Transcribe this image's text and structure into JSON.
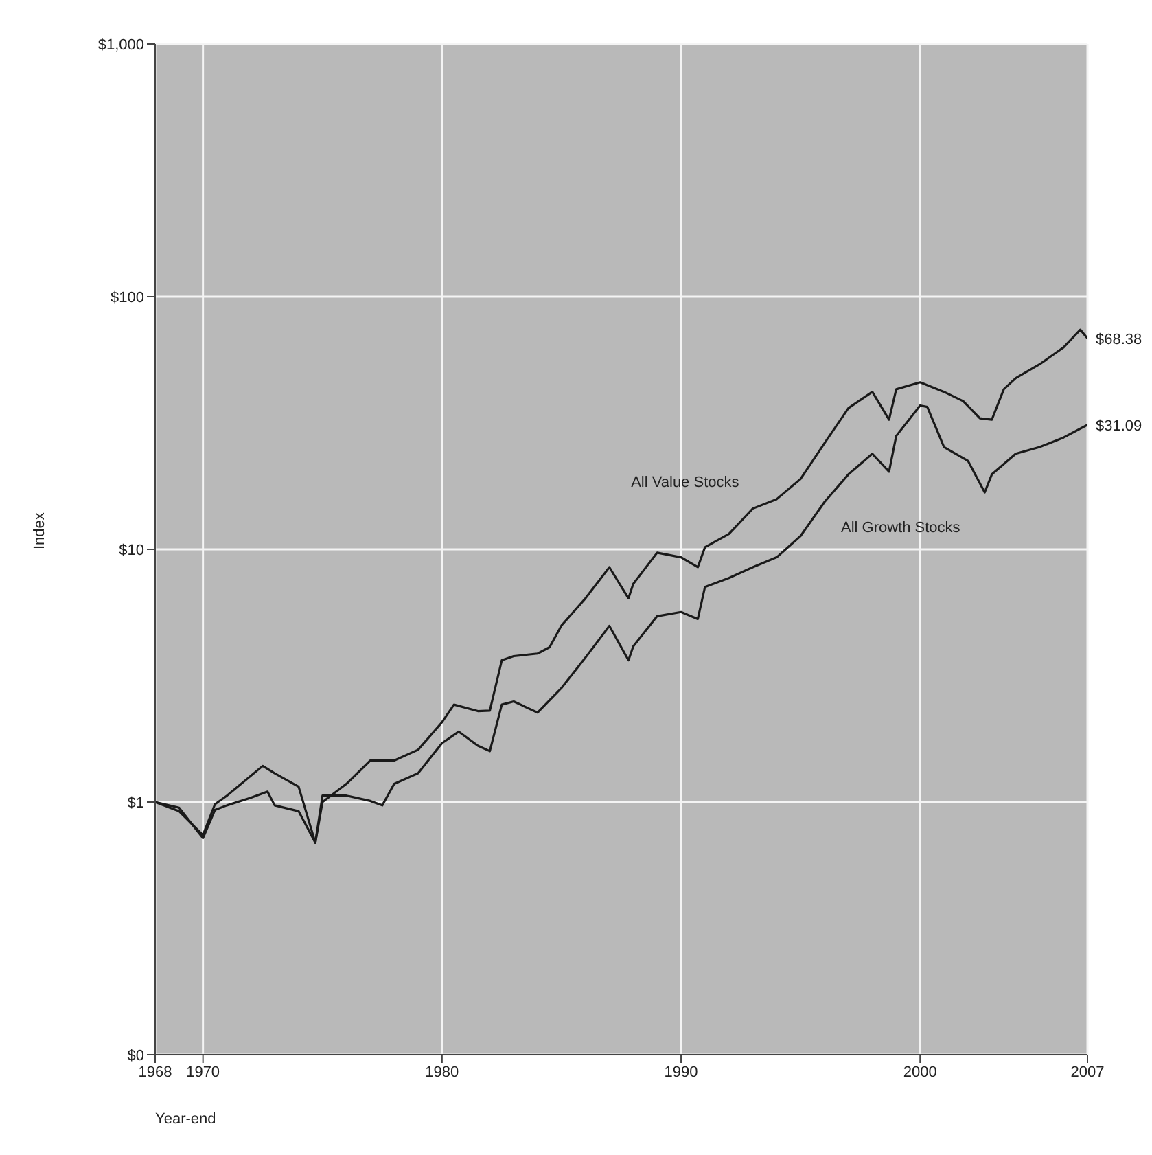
{
  "chart_data": {
    "type": "line",
    "xlabel": "Year-end",
    "ylabel": "Index",
    "log": "y",
    "grid": true,
    "marker": "none",
    "line_style": "solid",
    "xlim": [
      1968,
      2007
    ],
    "xticks": [
      1968,
      1970,
      1980,
      1990,
      2000,
      2007
    ],
    "ylim": [
      0.1,
      1000
    ],
    "yticks": [
      {
        "value": 0.1,
        "label": "$0"
      },
      {
        "value": 1,
        "label": "$1"
      },
      {
        "value": 10,
        "label": "$10"
      },
      {
        "value": 100,
        "label": "$100"
      },
      {
        "value": 1000,
        "label": "$1,000"
      }
    ],
    "series": [
      {
        "name": "All Value Stocks",
        "color": "#1a1a1a",
        "x": [
          1968,
          1969,
          1970,
          1970.5,
          1971,
          1972.5,
          1973,
          1974,
          1974.7,
          1975,
          1976,
          1977,
          1978,
          1979,
          1980,
          1980.5,
          1981.5,
          1982,
          1982.5,
          1983,
          1984,
          1984.5,
          1985,
          1986,
          1987,
          1987.8,
          1988,
          1989,
          1990,
          1990.7,
          1991,
          1992,
          1993,
          1994,
          1995,
          1996,
          1997,
          1998,
          1998.7,
          1999,
          2000,
          2001,
          2001.8,
          2002.5,
          2003,
          2003.5,
          2004,
          2005,
          2006,
          2006.7,
          2007
        ],
        "values": [
          1.0,
          0.92,
          0.74,
          0.98,
          1.06,
          1.39,
          1.3,
          1.15,
          0.69,
          1.0,
          1.18,
          1.46,
          1.46,
          1.61,
          2.07,
          2.43,
          2.29,
          2.3,
          3.64,
          3.78,
          3.87,
          4.1,
          5.0,
          6.4,
          8.5,
          6.4,
          7.3,
          9.7,
          9.3,
          8.5,
          10.2,
          11.5,
          14.5,
          15.8,
          19.0,
          26.3,
          36.2,
          42,
          32.6,
          43,
          45.8,
          42,
          38.6,
          33,
          32.6,
          43,
          47.6,
          54,
          63,
          74,
          68.38
        ]
      },
      {
        "name": "All Growth Stocks",
        "color": "#1a1a1a",
        "x": [
          1968,
          1969,
          1970,
          1970.5,
          1971,
          1972,
          1972.7,
          1973,
          1974,
          1974.7,
          1975,
          1976,
          1977,
          1977.5,
          1978,
          1979,
          1980,
          1980.7,
          1981.5,
          1982,
          1982.5,
          1983,
          1984,
          1985,
          1986,
          1987,
          1987.8,
          1988,
          1989,
          1990,
          1990.7,
          1991,
          1992,
          1993,
          1994,
          1995,
          1996,
          1997,
          1998,
          1998.7,
          1999,
          2000,
          2000.3,
          2001,
          2002,
          2002.7,
          2003,
          2004,
          2005,
          2006,
          2007
        ],
        "values": [
          1.0,
          0.95,
          0.72,
          0.93,
          0.97,
          1.04,
          1.1,
          0.97,
          0.92,
          0.69,
          1.06,
          1.06,
          1.01,
          0.97,
          1.18,
          1.3,
          1.71,
          1.9,
          1.67,
          1.59,
          2.43,
          2.5,
          2.26,
          2.83,
          3.73,
          4.98,
          3.64,
          4.13,
          5.44,
          5.65,
          5.3,
          7.1,
          7.7,
          8.5,
          9.3,
          11.3,
          15.4,
          19.8,
          23.9,
          20.3,
          28.1,
          37.1,
          36.6,
          25.4,
          22.4,
          16.8,
          19.8,
          23.9,
          25.4,
          27.7,
          31.09
        ]
      }
    ],
    "annotations": [
      {
        "text": "$68.38",
        "x": 2007,
        "y": 68.38
      },
      {
        "text": "$31.09",
        "x": 2007,
        "y": 31.09
      }
    ]
  }
}
